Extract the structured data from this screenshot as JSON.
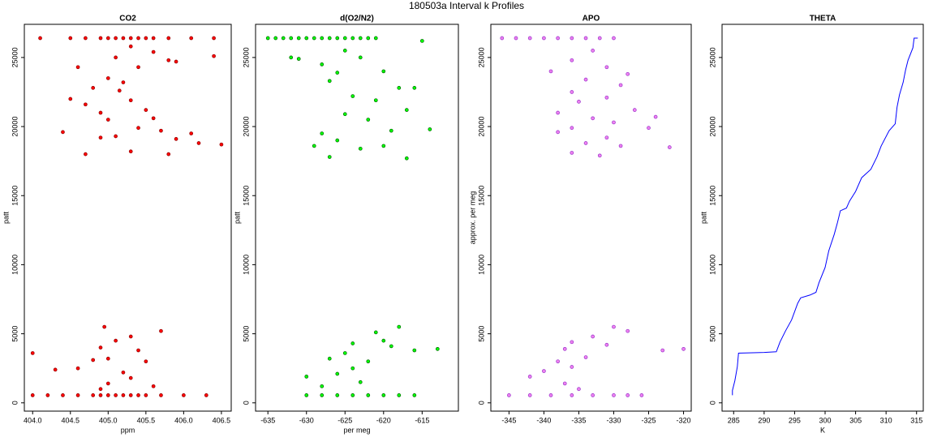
{
  "title": "180503a   Interval k Profiles",
  "chart_data": [
    {
      "type": "scatter",
      "title": "CO2",
      "xlabel": "ppm",
      "ylabel": "patt",
      "xlim": [
        403.89,
        406.63
      ],
      "ylim": [
        -600,
        27400
      ],
      "xticks": [
        {
          "value": 404,
          "label": "404.0"
        },
        404.5,
        {
          "value": 405,
          "label": "405.0"
        },
        405.5,
        {
          "value": 406,
          "label": "406.0"
        },
        406.5
      ],
      "yticks": [
        0,
        5000,
        10000,
        15000,
        20000,
        25000
      ],
      "series": [
        {
          "color": "#ff0000",
          "edgecolor": "#8b0000",
          "x": [
            404.1,
            404.5,
            404.7,
            404.9,
            405.0,
            405.1,
            405.2,
            405.3,
            405.4,
            405.5,
            405.6,
            405.8,
            406.1,
            406.4,
            405.3,
            405.6,
            405.1,
            405.8,
            405.4,
            404.6,
            405.9,
            406.4,
            405.0,
            405.2,
            404.8,
            405.15,
            404.5,
            404.7,
            405.3,
            405.5,
            404.9,
            405.0,
            405.6,
            405.4,
            405.7,
            404.4,
            405.1,
            404.9,
            405.9,
            406.2,
            406.5,
            405.3,
            404.7,
            405.8,
            406.1,
            404.95,
            405.7,
            405.3,
            405.1,
            404.9,
            405.4,
            404.0,
            405.0,
            404.8,
            405.5,
            404.3,
            405.2,
            404.6,
            405.3,
            405.0,
            405.6,
            404.9,
            404.0,
            404.2,
            404.4,
            404.6,
            404.8,
            404.9,
            405.0,
            405.1,
            405.2,
            405.3,
            405.4,
            405.5,
            405.7,
            406.0,
            406.3
          ],
          "values": [
            26400,
            26400,
            26400,
            26400,
            26400,
            26400,
            26400,
            26400,
            26400,
            26400,
            26400,
            26400,
            26400,
            26400,
            25800,
            25400,
            25000,
            24800,
            24300,
            24300,
            24700,
            25100,
            23500,
            23200,
            22800,
            22600,
            22000,
            21600,
            21900,
            21200,
            21000,
            20500,
            20600,
            19900,
            19700,
            19600,
            19300,
            19200,
            19100,
            18800,
            18700,
            18200,
            18000,
            18000,
            19500,
            5500,
            5200,
            4800,
            4500,
            4000,
            3800,
            3600,
            3200,
            3100,
            3000,
            2400,
            2200,
            2500,
            1800,
            1400,
            1200,
            1000,
            550,
            550,
            550,
            550,
            550,
            550,
            550,
            550,
            550,
            550,
            550,
            550,
            550,
            550,
            550
          ]
        }
      ]
    },
    {
      "type": "scatter",
      "title": "d(O2/N2)",
      "xlabel": "per meg",
      "ylabel": "patt",
      "xlim": [
        -636.6,
        -610.3
      ],
      "ylim": [
        -600,
        27400
      ],
      "xticks": [
        -635,
        -630,
        -625,
        -620,
        -615
      ],
      "yticks": [
        0,
        5000,
        10000,
        15000,
        20000,
        25000
      ],
      "series": [
        {
          "color": "#00ff00",
          "edgecolor": "#006400",
          "x": [
            -635,
            -634,
            -633,
            -632,
            -631,
            -630,
            -629,
            -628,
            -627,
            -626,
            -625,
            -624,
            -623,
            -622,
            -621,
            -632,
            -628,
            -625,
            -623,
            -620,
            -618,
            -616,
            -624,
            -627,
            -621,
            -617,
            -625,
            -622,
            -619,
            -614,
            -628,
            -626,
            -623,
            -620,
            -617,
            -627,
            -629,
            -631,
            -626,
            -615,
            -618,
            -621,
            -624,
            -620,
            -613,
            -616,
            -619,
            -625,
            -627,
            -622,
            -624,
            -626,
            -630,
            -628,
            -623,
            -630,
            -628,
            -626,
            -624,
            -622,
            -620,
            -618,
            -616
          ],
          "values": [
            26400,
            26400,
            26400,
            26400,
            26400,
            26400,
            26400,
            26400,
            26400,
            26400,
            26400,
            26400,
            26400,
            26400,
            26400,
            25000,
            24500,
            25500,
            25000,
            24000,
            22800,
            22800,
            22200,
            23300,
            21900,
            21200,
            20900,
            20500,
            19700,
            19800,
            19500,
            19000,
            18400,
            18600,
            17700,
            17800,
            18600,
            24900,
            23900,
            26200,
            5500,
            5100,
            4300,
            4500,
            3900,
            3800,
            4100,
            3600,
            3200,
            3000,
            2500,
            2100,
            1900,
            1200,
            1500,
            550,
            550,
            550,
            550,
            550,
            550,
            550,
            550
          ]
        }
      ]
    },
    {
      "type": "scatter",
      "title": "APO",
      "ylabel": "approx. per meg",
      "xlim": [
        -347.6,
        -318.9
      ],
      "ylim": [
        -600,
        27400
      ],
      "xticks": [
        -345,
        -340,
        -335,
        -330,
        -325,
        -320
      ],
      "yticks": [
        0,
        5000,
        10000,
        15000,
        20000,
        25000
      ],
      "series": [
        {
          "color": "#ee82ee",
          "edgecolor": "#9932cc",
          "x": [
            -346,
            -344,
            -342,
            -340,
            -338,
            -336,
            -334,
            -332,
            -330,
            -333,
            -336,
            -331,
            -339,
            -334,
            -329,
            -336,
            -331,
            -335,
            -327,
            -338,
            -333,
            -330,
            -336,
            -325,
            -338,
            -331,
            -334,
            -329,
            -322,
            -336,
            -332,
            -324,
            -328,
            -330,
            -328,
            -333,
            -336,
            -331,
            -337,
            -320,
            -323,
            -334,
            -338,
            -336,
            -340,
            -342,
            -337,
            -335,
            -345,
            -342,
            -339,
            -336,
            -333,
            -330,
            -328,
            -326
          ],
          "values": [
            26400,
            26400,
            26400,
            26400,
            26400,
            26400,
            26400,
            26400,
            26400,
            25500,
            24800,
            24300,
            24000,
            23400,
            23000,
            22500,
            22100,
            21800,
            21200,
            21000,
            20600,
            20300,
            19900,
            19900,
            19600,
            19200,
            18800,
            18600,
            18500,
            18100,
            17900,
            20700,
            23800,
            5500,
            5200,
            4800,
            4400,
            4200,
            3900,
            3900,
            3800,
            3300,
            3000,
            2600,
            2300,
            1900,
            1400,
            1000,
            550,
            550,
            550,
            550,
            550,
            550,
            550,
            550
          ]
        }
      ]
    },
    {
      "type": "line",
      "title": "THETA",
      "xlabel": "K",
      "ylabel": "patt",
      "xlim": [
        283.1,
        316.1
      ],
      "ylim": [
        -600,
        27400
      ],
      "xticks": [
        285,
        290,
        295,
        300,
        305,
        310,
        315
      ],
      "yticks": [
        0,
        5000,
        10000,
        15000,
        20000,
        25000
      ],
      "series": [
        {
          "color": "#0000ff",
          "x": [
            284.8,
            284.8,
            285.2,
            285.6,
            285.8,
            290,
            292,
            292.6,
            293.5,
            294.5,
            295.5,
            296,
            297.5,
            298.5,
            299,
            300,
            300.6,
            301.5,
            302,
            302.5,
            303.5,
            304,
            305,
            306,
            307.5,
            308.5,
            309.2,
            310.5,
            311.5,
            311.8,
            312.2,
            312.8,
            313.2,
            313.6,
            314.4,
            314.6,
            315.2
          ],
          "values": [
            550,
            900,
            1600,
            2600,
            3600,
            3650,
            3700,
            4400,
            5200,
            6000,
            7200,
            7600,
            7800,
            8000,
            8700,
            9800,
            11000,
            12200,
            13000,
            13900,
            14100,
            14600,
            15300,
            16300,
            16900,
            17800,
            18600,
            19700,
            20200,
            21400,
            22300,
            23200,
            24100,
            24800,
            25700,
            26400,
            26400
          ]
        }
      ]
    }
  ]
}
